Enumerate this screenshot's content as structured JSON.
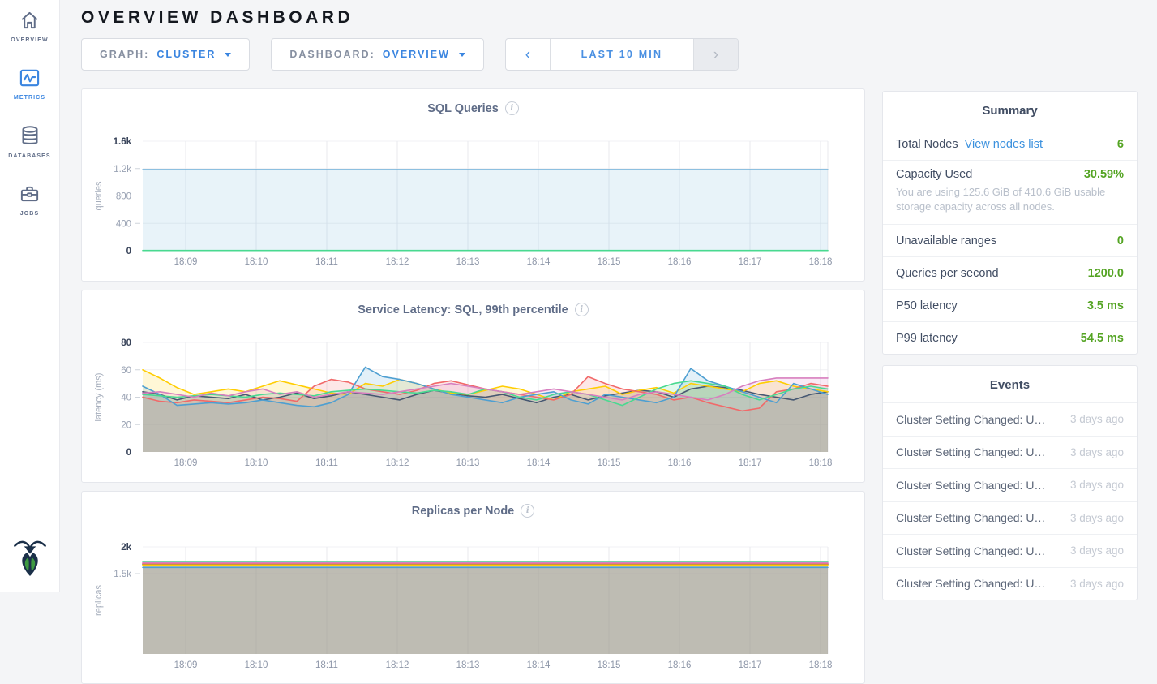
{
  "app": {
    "title": "OVERVIEW DASHBOARD"
  },
  "sidebar": {
    "items": [
      {
        "label": "OVERVIEW",
        "icon": "home-icon",
        "active": false
      },
      {
        "label": "METRICS",
        "icon": "metrics-icon",
        "active": true
      },
      {
        "label": "DATABASES",
        "icon": "databases-icon",
        "active": false
      },
      {
        "label": "JOBS",
        "icon": "briefcase-icon",
        "active": false
      }
    ],
    "logo": "cockroachdb-logo"
  },
  "controls": {
    "graph": {
      "label": "GRAPH:",
      "value": "CLUSTER"
    },
    "dashboard": {
      "label": "DASHBOARD:",
      "value": "OVERVIEW"
    },
    "timerange": {
      "value": "LAST 10 MIN",
      "prev": "‹",
      "next": "›"
    }
  },
  "summary": {
    "title": "Summary",
    "total_nodes": {
      "label": "Total Nodes",
      "link": "View nodes list",
      "value": "6"
    },
    "capacity": {
      "label": "Capacity Used",
      "value": "30.59%",
      "note": "You are using 125.6 GiB of 410.6 GiB usable storage capacity across all nodes."
    },
    "unavailable": {
      "label": "Unavailable ranges",
      "value": "0"
    },
    "qps": {
      "label": "Queries per second",
      "value": "1200.0"
    },
    "p50": {
      "label": "P50 latency",
      "value": "3.5 ms"
    },
    "p99": {
      "label": "P99 latency",
      "value": "54.5 ms"
    }
  },
  "events": {
    "title": "Events",
    "items": [
      {
        "title": "Cluster Setting Changed: U…",
        "time": "3 days ago"
      },
      {
        "title": "Cluster Setting Changed: U…",
        "time": "3 days ago"
      },
      {
        "title": "Cluster Setting Changed: U…",
        "time": "3 days ago"
      },
      {
        "title": "Cluster Setting Changed: U…",
        "time": "3 days ago"
      },
      {
        "title": "Cluster Setting Changed: U…",
        "time": "3 days ago"
      },
      {
        "title": "Cluster Setting Changed: U…",
        "time": "3 days ago"
      }
    ]
  },
  "colors": {
    "accent_blue": "#3a85e0",
    "link_blue": "#3b91de",
    "value_green": "#54a423",
    "series_palette": [
      "#475872",
      "#FFCD02",
      "#F16969",
      "#4E9FD1",
      "#49D990",
      "#D77FBF"
    ]
  },
  "chart_data": [
    {
      "type": "line",
      "title": "SQL Queries",
      "ylabel": "queries",
      "ylim": [
        0,
        1600
      ],
      "y_ticks": [
        {
          "value": 1600,
          "label": "1.6k"
        },
        {
          "value": 1200,
          "label": "1.2k"
        },
        {
          "value": 800,
          "label": "800"
        },
        {
          "value": 400,
          "label": "400"
        },
        {
          "value": 0,
          "label": "0"
        }
      ],
      "x_ticks": [
        "18:09",
        "18:10",
        "18:11",
        "18:12",
        "18:13",
        "18:14",
        "18:15",
        "18:16",
        "18:17",
        "18:18"
      ],
      "series": [
        {
          "color": "#4E9FD1",
          "fill": true,
          "values": [
            1183,
            1183
          ]
        },
        {
          "color": "#49D990",
          "fill": false,
          "values": [
            3,
            3
          ]
        }
      ]
    },
    {
      "type": "line",
      "title": "Service Latency: SQL, 99th percentile",
      "ylabel": "latency (ms)",
      "ylim": [
        0,
        80
      ],
      "y_ticks": [
        {
          "value": 80,
          "label": "80"
        },
        {
          "value": 60,
          "label": "60"
        },
        {
          "value": 40,
          "label": "40"
        },
        {
          "value": 20,
          "label": "20"
        },
        {
          "value": 0,
          "label": "0"
        }
      ],
      "x_ticks": [
        "18:09",
        "18:10",
        "18:11",
        "18:12",
        "18:13",
        "18:14",
        "18:15",
        "18:16",
        "18:17",
        "18:18"
      ],
      "series": [
        {
          "color": "#475872",
          "fill": true,
          "values": [
            44,
            42,
            38,
            41,
            40,
            39,
            42,
            38,
            40,
            43,
            39,
            41,
            44,
            42,
            40,
            38,
            42,
            45,
            43,
            41,
            40,
            42,
            39,
            36,
            40,
            42,
            38,
            41,
            43,
            45,
            44,
            40,
            46,
            48,
            47,
            45,
            42,
            40,
            38,
            42,
            44
          ]
        },
        {
          "color": "#FFCD02",
          "fill": true,
          "values": [
            60,
            54,
            47,
            42,
            44,
            46,
            44,
            48,
            52,
            49,
            46,
            43,
            42,
            50,
            48,
            53,
            50,
            46,
            43,
            42,
            45,
            48,
            46,
            42,
            38,
            44,
            46,
            48,
            42,
            45,
            47,
            43,
            50,
            48,
            46,
            44,
            50,
            52,
            48,
            46,
            44
          ]
        },
        {
          "color": "#F16969",
          "fill": true,
          "values": [
            40,
            37,
            36,
            38,
            37,
            36,
            38,
            40,
            39,
            37,
            48,
            53,
            51,
            46,
            44,
            42,
            45,
            50,
            52,
            49,
            46,
            44,
            42,
            40,
            38,
            42,
            55,
            50,
            46,
            44,
            42,
            38,
            40,
            36,
            33,
            30,
            32,
            44,
            46,
            50,
            48
          ]
        },
        {
          "color": "#4E9FD1",
          "fill": true,
          "values": [
            48,
            42,
            34,
            35,
            36,
            35,
            36,
            38,
            36,
            34,
            33,
            36,
            42,
            62,
            55,
            53,
            50,
            46,
            42,
            40,
            38,
            36,
            40,
            42,
            44,
            38,
            35,
            42,
            40,
            38,
            36,
            40,
            61,
            52,
            48,
            44,
            40,
            36,
            50,
            46,
            42
          ]
        },
        {
          "color": "#49D990",
          "fill": true,
          "values": [
            42,
            41,
            40,
            41,
            42,
            41,
            40,
            42,
            43,
            42,
            41,
            44,
            45,
            46,
            45,
            44,
            43,
            45,
            44,
            42,
            46,
            44,
            40,
            38,
            42,
            44,
            42,
            38,
            34,
            40,
            46,
            50,
            52,
            50,
            48,
            42,
            38,
            42,
            46,
            48,
            46
          ]
        },
        {
          "color": "#D77FBF",
          "fill": true,
          "values": [
            43,
            44,
            42,
            40,
            43,
            41,
            44,
            46,
            42,
            44,
            40,
            42,
            44,
            43,
            42,
            44,
            46,
            48,
            50,
            48,
            46,
            44,
            42,
            44,
            46,
            44,
            42,
            40,
            38,
            42,
            44,
            42,
            40,
            38,
            42,
            48,
            52,
            54,
            54,
            54,
            54
          ]
        }
      ]
    },
    {
      "type": "line",
      "title": "Replicas per Node",
      "ylabel": "replicas",
      "ylim": [
        0,
        2000
      ],
      "y_ticks": [
        {
          "value": 2000,
          "label": "2k"
        },
        {
          "value": 1500,
          "label": "1.5k"
        }
      ],
      "x_ticks": [
        "18:09",
        "18:10",
        "18:11",
        "18:12",
        "18:13",
        "18:14",
        "18:15",
        "18:16",
        "18:17",
        "18:18"
      ],
      "series": [
        {
          "color": "#475872",
          "fill": true,
          "values": [
            1678,
            1678
          ]
        },
        {
          "color": "#FFCD02",
          "fill": true,
          "values": [
            1662,
            1662
          ]
        },
        {
          "color": "#F16969",
          "fill": true,
          "values": [
            1690,
            1690
          ]
        },
        {
          "color": "#4E9FD1",
          "fill": true,
          "values": [
            1616,
            1616
          ]
        },
        {
          "color": "#49D990",
          "fill": true,
          "values": [
            1728,
            1728
          ]
        },
        {
          "color": "#D77FBF",
          "fill": true,
          "values": [
            1702,
            1702
          ]
        }
      ]
    }
  ]
}
